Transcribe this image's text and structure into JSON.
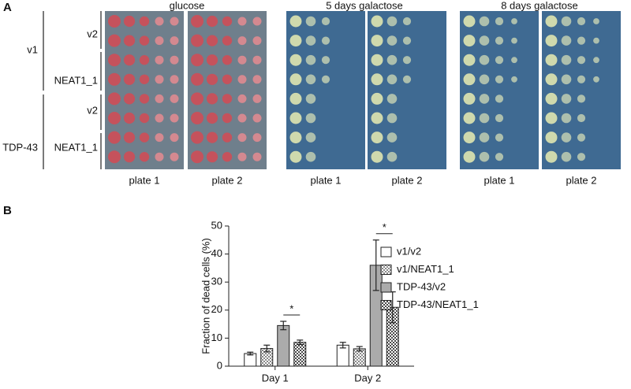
{
  "panel_a": {
    "label": "A",
    "conditions": [
      "glucose",
      "5 days galactose",
      "8 days galactose"
    ],
    "plate_labels": [
      "plate 1",
      "plate 2",
      "plate 1",
      "plate 2",
      "plate 1",
      "plate 2"
    ],
    "groups": [
      {
        "name": "v1",
        "subgroups": [
          "v2",
          "NEAT1_1"
        ]
      },
      {
        "name": "TDP-43",
        "subgroups": [
          "v2",
          "NEAT1_1"
        ]
      }
    ]
  },
  "panel_b": {
    "label": "B"
  },
  "chart_data": {
    "type": "bar",
    "y_label": "Fraction of dead cells (%)",
    "categories": [
      "Day 1",
      "Day 2"
    ],
    "series": [
      {
        "name": "v1/v2",
        "color": "#ffffff",
        "pattern": false,
        "values": [
          4.5,
          7.5
        ],
        "errors": [
          0.5,
          1
        ]
      },
      {
        "name": "v1/NEAT1_1",
        "color": "#8a8a8a",
        "pattern": true,
        "values": [
          6.3,
          6.2
        ],
        "errors": [
          1.2,
          0.8
        ]
      },
      {
        "name": "TDP-43/v2",
        "color": "#ababab",
        "pattern": false,
        "values": [
          14.5,
          36
        ],
        "errors": [
          1.5,
          9
        ]
      },
      {
        "name": "TDP-43/NEAT1_1",
        "color": "#4a4a4a",
        "pattern": true,
        "values": [
          8.5,
          21
        ],
        "errors": [
          0.8,
          5.5
        ]
      }
    ],
    "annotations": [
      "*",
      "*"
    ],
    "ylim": [
      0,
      50
    ],
    "yticks": [
      0,
      10,
      20,
      30,
      40,
      50
    ]
  }
}
